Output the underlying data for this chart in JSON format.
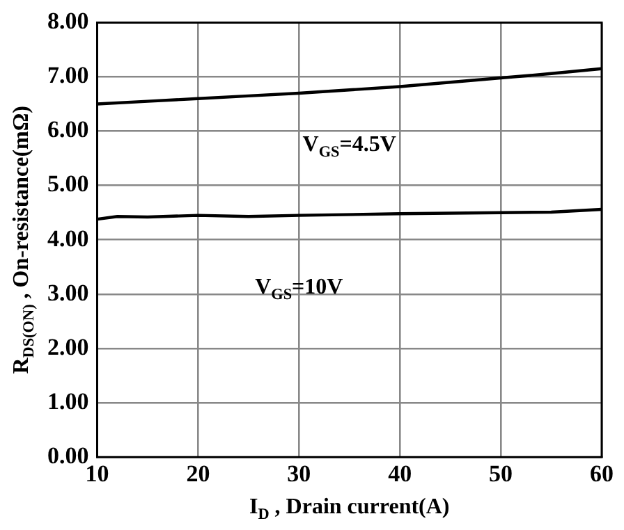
{
  "chart_data": {
    "type": "line",
    "xlabel": "I$_{D}$ , Drain current(A)",
    "ylabel": "R$_{DS(ON)}$ , On-resistance(mΩ)",
    "xlim": [
      10,
      60
    ],
    "xticks": [
      10,
      20,
      30,
      40,
      50,
      60
    ],
    "ylim": [
      0,
      8
    ],
    "yticks": [
      {
        "value": 0,
        "label": "0.00"
      },
      {
        "value": 1,
        "label": "1.00"
      },
      {
        "value": 2,
        "label": "2.00"
      },
      {
        "value": 3,
        "label": "3.00"
      },
      {
        "value": 4,
        "label": "4.00"
      },
      {
        "value": 5,
        "label": "5.00"
      },
      {
        "value": 6,
        "label": "6.00"
      },
      {
        "value": 7,
        "label": "7.00"
      },
      {
        "value": 8,
        "label": "8.00"
      }
    ],
    "grid": true,
    "legend": false,
    "marker": "none",
    "line_style": "solid",
    "series": [
      {
        "name": "V$_{GS}$=4.5V",
        "color": "#000000",
        "x": [
          10,
          15,
          20,
          25,
          30,
          35,
          40,
          45,
          50,
          55,
          60
        ],
        "values": [
          6.5,
          6.55,
          6.6,
          6.65,
          6.7,
          6.76,
          6.82,
          6.9,
          6.98,
          7.06,
          7.15
        ]
      },
      {
        "name": "V$_{GS}$=10V",
        "color": "#000000",
        "x": [
          10,
          12,
          15,
          20,
          25,
          30,
          40,
          50,
          55,
          60
        ],
        "values": [
          4.38,
          4.43,
          4.42,
          4.45,
          4.43,
          4.45,
          4.48,
          4.5,
          4.51,
          4.56
        ]
      }
    ]
  }
}
